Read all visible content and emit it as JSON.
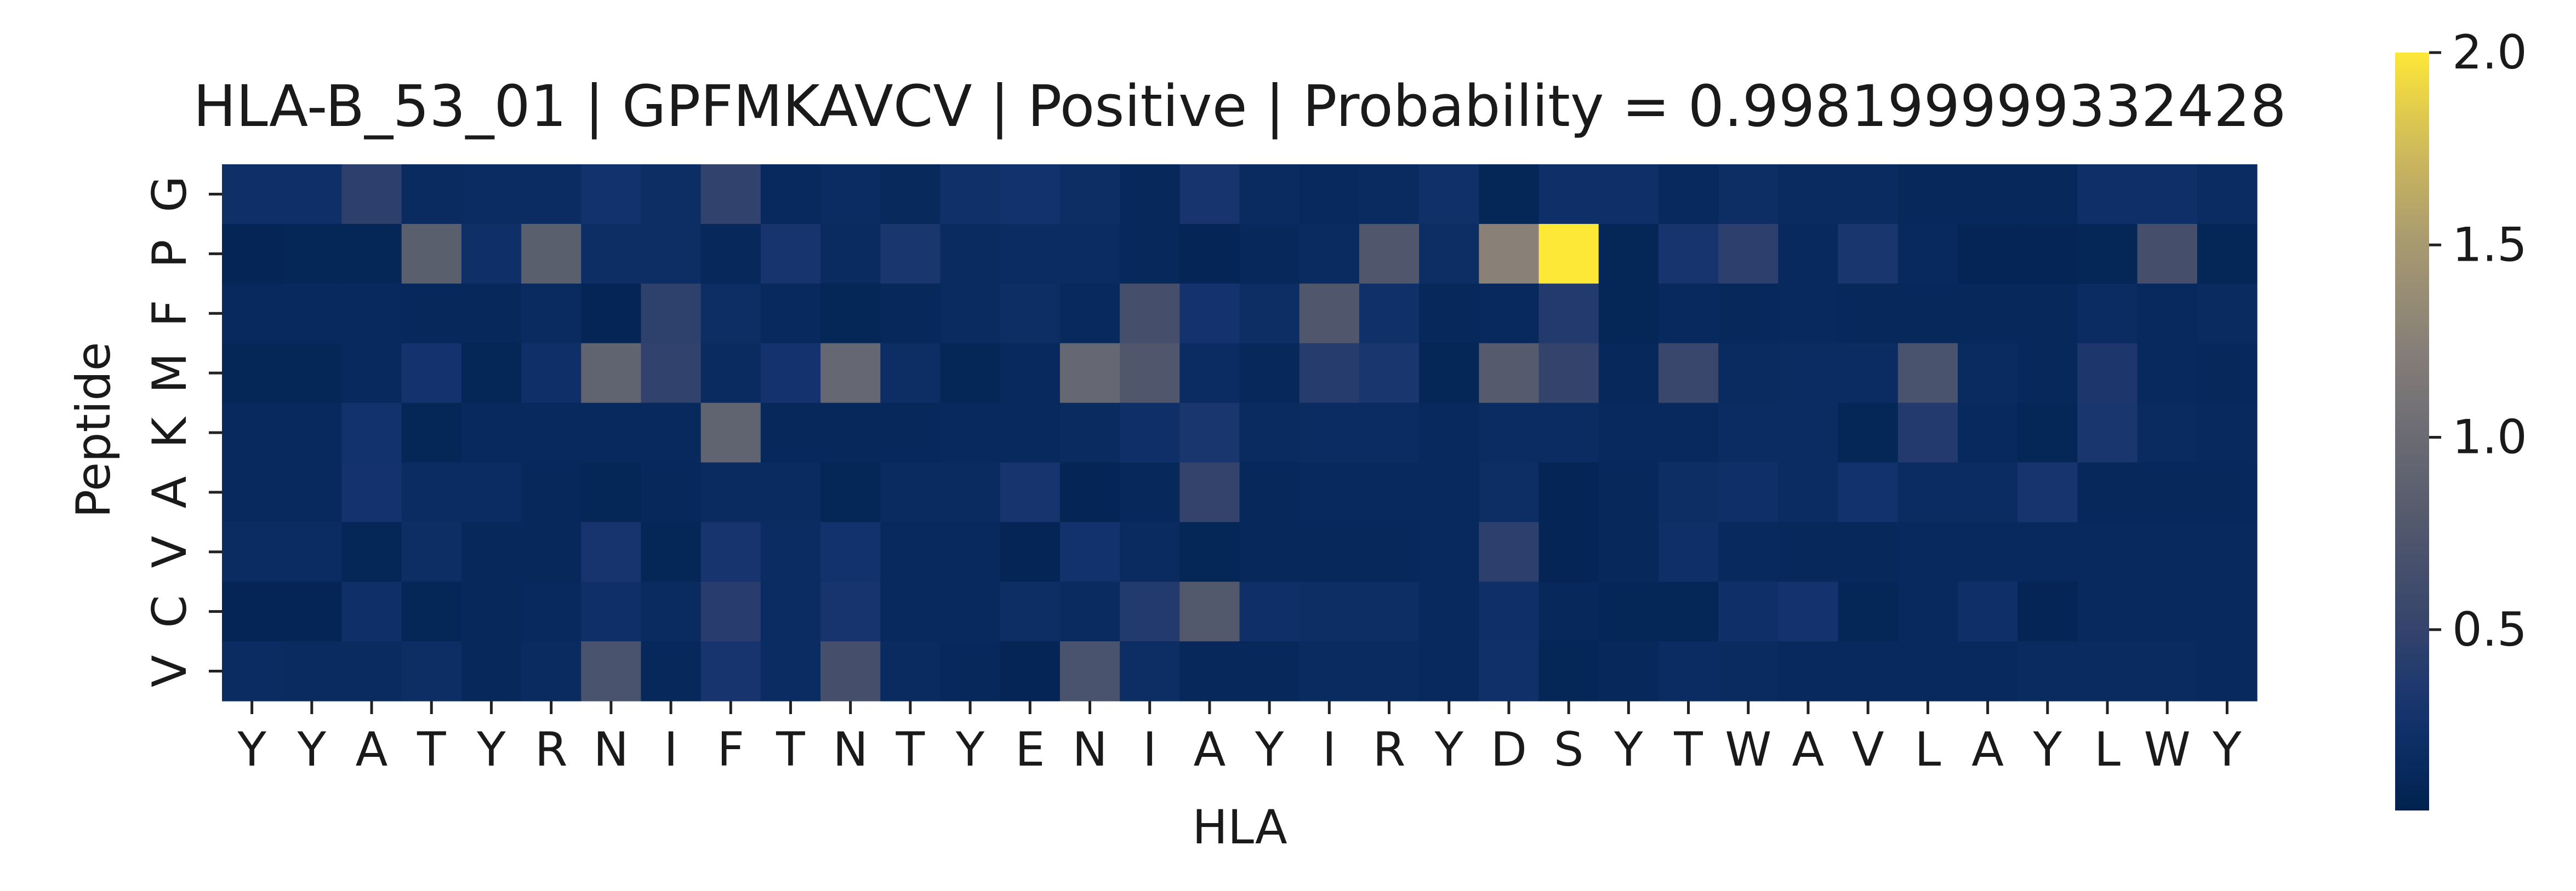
{
  "chart_data": {
    "type": "heatmap",
    "title": "HLA-B_53_01 | GPFMKAVCV | Positive | Probability = 0.998199999332428",
    "xlabel": "HLA",
    "ylabel": "Peptide",
    "x_categories": [
      "Y",
      "Y",
      "A",
      "T",
      "Y",
      "R",
      "N",
      "I",
      "F",
      "T",
      "N",
      "T",
      "Y",
      "E",
      "N",
      "I",
      "A",
      "Y",
      "I",
      "R",
      "Y",
      "D",
      "S",
      "Y",
      "T",
      "W",
      "A",
      "V",
      "L",
      "A",
      "Y",
      "L",
      "W",
      "Y"
    ],
    "y_categories": [
      "G",
      "P",
      "F",
      "M",
      "K",
      "A",
      "V",
      "C",
      "V"
    ],
    "colormap": "cividis",
    "colorbar_range": [
      0.03,
      2.0
    ],
    "colorbar_ticks": [
      "0.5",
      "1.0",
      "1.5",
      "2.0"
    ],
    "values": [
      [
        0.22,
        0.22,
        0.45,
        0.16,
        0.18,
        0.18,
        0.26,
        0.2,
        0.48,
        0.14,
        0.18,
        0.13,
        0.24,
        0.26,
        0.2,
        0.12,
        0.3,
        0.16,
        0.14,
        0.16,
        0.24,
        0.1,
        0.22,
        0.22,
        0.14,
        0.2,
        0.16,
        0.16,
        0.12,
        0.12,
        0.12,
        0.22,
        0.22,
        0.18
      ],
      [
        0.08,
        0.1,
        0.1,
        0.85,
        0.22,
        0.85,
        0.2,
        0.2,
        0.12,
        0.3,
        0.16,
        0.32,
        0.16,
        0.18,
        0.18,
        0.12,
        0.08,
        0.12,
        0.16,
        0.75,
        0.2,
        1.25,
        2.0,
        0.1,
        0.3,
        0.45,
        0.14,
        0.32,
        0.14,
        0.08,
        0.08,
        0.1,
        0.65,
        0.1
      ],
      [
        0.14,
        0.14,
        0.14,
        0.12,
        0.12,
        0.16,
        0.08,
        0.46,
        0.2,
        0.14,
        0.1,
        0.12,
        0.16,
        0.2,
        0.14,
        0.65,
        0.28,
        0.2,
        0.75,
        0.24,
        0.12,
        0.14,
        0.38,
        0.1,
        0.14,
        0.12,
        0.14,
        0.12,
        0.12,
        0.12,
        0.12,
        0.18,
        0.14,
        0.16
      ],
      [
        0.1,
        0.1,
        0.14,
        0.28,
        0.1,
        0.22,
        0.9,
        0.48,
        0.16,
        0.28,
        0.95,
        0.2,
        0.1,
        0.14,
        0.95,
        0.75,
        0.18,
        0.12,
        0.4,
        0.32,
        0.1,
        0.8,
        0.5,
        0.12,
        0.55,
        0.16,
        0.18,
        0.18,
        0.7,
        0.16,
        0.12,
        0.34,
        0.14,
        0.12
      ],
      [
        0.14,
        0.14,
        0.26,
        0.1,
        0.14,
        0.14,
        0.14,
        0.14,
        0.9,
        0.12,
        0.12,
        0.12,
        0.14,
        0.14,
        0.16,
        0.22,
        0.32,
        0.16,
        0.18,
        0.18,
        0.14,
        0.18,
        0.18,
        0.14,
        0.14,
        0.18,
        0.18,
        0.1,
        0.38,
        0.14,
        0.1,
        0.32,
        0.16,
        0.14
      ],
      [
        0.14,
        0.14,
        0.28,
        0.18,
        0.18,
        0.12,
        0.1,
        0.12,
        0.16,
        0.16,
        0.1,
        0.16,
        0.16,
        0.3,
        0.08,
        0.12,
        0.5,
        0.12,
        0.14,
        0.14,
        0.14,
        0.2,
        0.08,
        0.12,
        0.2,
        0.22,
        0.18,
        0.26,
        0.18,
        0.18,
        0.3,
        0.12,
        0.12,
        0.12
      ],
      [
        0.18,
        0.18,
        0.1,
        0.2,
        0.12,
        0.12,
        0.3,
        0.1,
        0.3,
        0.18,
        0.26,
        0.14,
        0.14,
        0.08,
        0.26,
        0.16,
        0.1,
        0.12,
        0.12,
        0.12,
        0.14,
        0.45,
        0.08,
        0.12,
        0.22,
        0.14,
        0.12,
        0.12,
        0.14,
        0.14,
        0.14,
        0.14,
        0.14,
        0.14
      ],
      [
        0.08,
        0.08,
        0.22,
        0.1,
        0.12,
        0.14,
        0.22,
        0.16,
        0.42,
        0.18,
        0.3,
        0.14,
        0.14,
        0.2,
        0.16,
        0.38,
        0.78,
        0.22,
        0.2,
        0.2,
        0.14,
        0.22,
        0.12,
        0.1,
        0.1,
        0.22,
        0.28,
        0.1,
        0.14,
        0.22,
        0.08,
        0.14,
        0.14,
        0.14
      ],
      [
        0.18,
        0.16,
        0.16,
        0.2,
        0.12,
        0.16,
        0.7,
        0.12,
        0.3,
        0.18,
        0.65,
        0.16,
        0.12,
        0.08,
        0.7,
        0.2,
        0.12,
        0.12,
        0.16,
        0.16,
        0.14,
        0.24,
        0.1,
        0.12,
        0.18,
        0.16,
        0.14,
        0.14,
        0.14,
        0.14,
        0.16,
        0.16,
        0.16,
        0.14
      ]
    ]
  }
}
